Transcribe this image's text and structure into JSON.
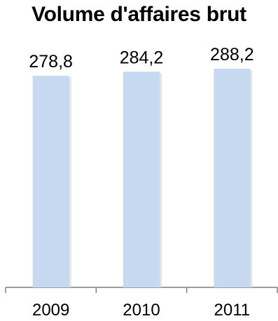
{
  "chart_data": {
    "type": "bar",
    "title": "Volume d'affaires brut",
    "categories": [
      "2009",
      "2010",
      "2011"
    ],
    "values": [
      278.8,
      284.2,
      288.2
    ],
    "value_labels": [
      "278,8",
      "284,2",
      "288,2"
    ],
    "xlabel": "",
    "ylabel": "",
    "ylim": [
      0,
      300
    ],
    "grid": false,
    "legend": "none",
    "colors": {
      "bar": "#c6d9f1",
      "bar_shadow": "#d9d9d9",
      "axis": "#7f7f7f"
    }
  }
}
